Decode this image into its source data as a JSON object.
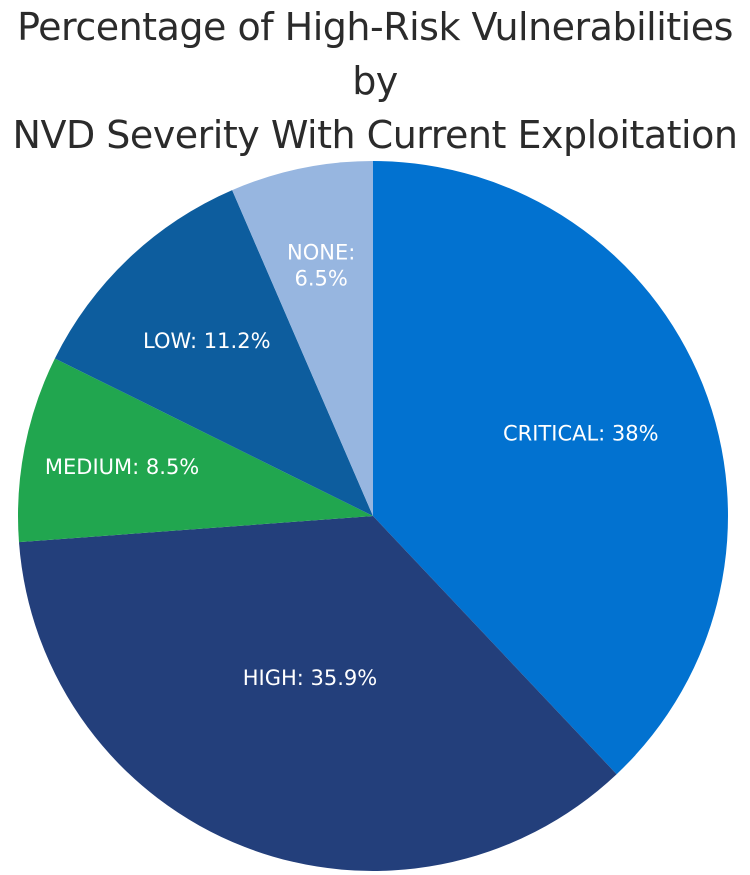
{
  "chart_data": {
    "type": "pie",
    "title_lines": [
      "Percentage of High-Risk Vulnerabilities by",
      "NVD Severity With Current Exploitation"
    ],
    "start_angle_deg": 0,
    "direction": "clockwise",
    "slices": [
      {
        "name": "CRITICAL",
        "label": "CRITICAL: 38%",
        "value": 38.0,
        "color": "#0272d0",
        "label_lines": [
          "CRITICAL: 38%"
        ]
      },
      {
        "name": "HIGH",
        "label": "HIGH: 35.9%",
        "value": 35.9,
        "color": "#233f7b",
        "label_lines": [
          "HIGH: 35.9%"
        ]
      },
      {
        "name": "MEDIUM",
        "label": "MEDIUM: 8.5%",
        "value": 8.5,
        "color": "#21a64f",
        "label_lines": [
          "MEDIUM: 8.5%"
        ]
      },
      {
        "name": "LOW",
        "label": "LOW: 11.2%",
        "value": 11.2,
        "color": "#0d5d9e",
        "label_lines": [
          "LOW: 11.2%"
        ]
      },
      {
        "name": "NONE",
        "label": "NONE: 6.5%",
        "value": 6.5,
        "color": "#97b6e0",
        "label_lines": [
          "NONE:",
          "6.5%"
        ]
      }
    ]
  }
}
